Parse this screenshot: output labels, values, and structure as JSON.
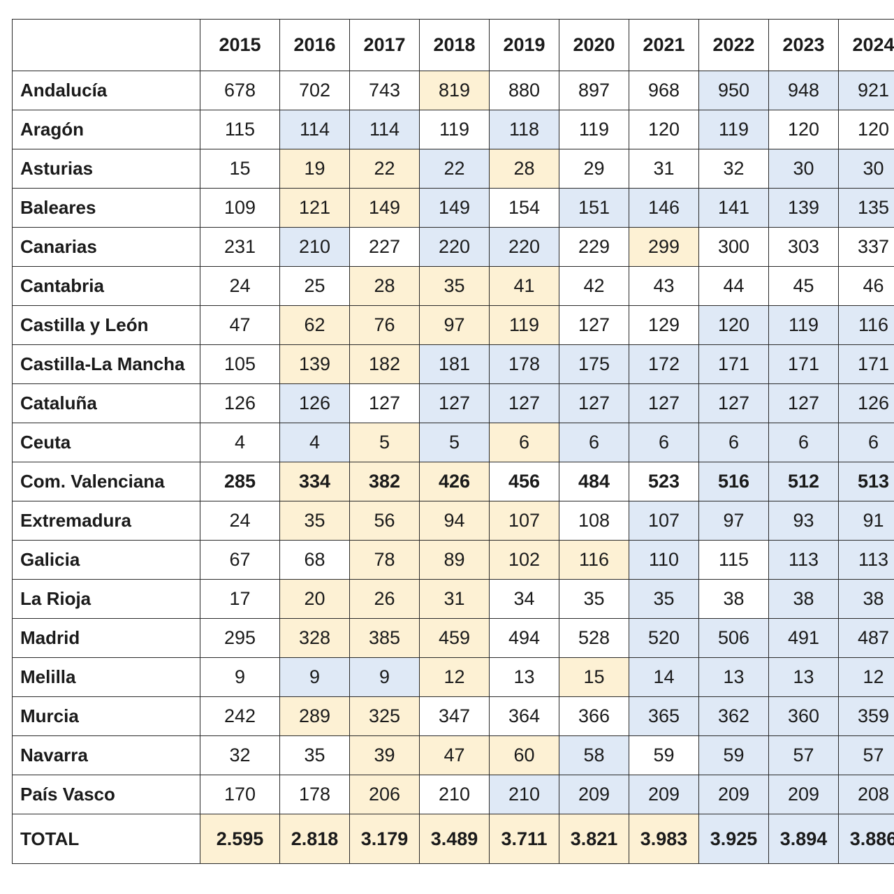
{
  "table": {
    "years": [
      "2015",
      "2016",
      "2017",
      "2018",
      "2019",
      "2020",
      "2021",
      "2022",
      "2023",
      "2024"
    ],
    "shading_colors": {
      "yellow": "#fdf1d4",
      "blue": "#dfe9f6",
      "white": "#ffffff"
    },
    "rows": [
      {
        "region": "Andalucía",
        "values": [
          "678",
          "702",
          "743",
          "819",
          "880",
          "897",
          "968",
          "950",
          "948",
          "921"
        ],
        "shading": [
          "w",
          "w",
          "w",
          "y",
          "w",
          "w",
          "w",
          "b",
          "b",
          "b"
        ],
        "bold": false
      },
      {
        "region": "Aragón",
        "values": [
          "115",
          "114",
          "114",
          "119",
          "118",
          "119",
          "120",
          "119",
          "120",
          "120"
        ],
        "shading": [
          "w",
          "b",
          "b",
          "w",
          "b",
          "w",
          "w",
          "b",
          "w",
          "w"
        ],
        "bold": false
      },
      {
        "region": "Asturias",
        "values": [
          "15",
          "19",
          "22",
          "22",
          "28",
          "29",
          "31",
          "32",
          "30",
          "30"
        ],
        "shading": [
          "w",
          "y",
          "y",
          "b",
          "y",
          "w",
          "w",
          "w",
          "b",
          "b"
        ],
        "bold": false
      },
      {
        "region": "Baleares",
        "values": [
          "109",
          "121",
          "149",
          "149",
          "154",
          "151",
          "146",
          "141",
          "139",
          "135"
        ],
        "shading": [
          "w",
          "y",
          "y",
          "b",
          "w",
          "b",
          "b",
          "b",
          "b",
          "b"
        ],
        "bold": false
      },
      {
        "region": "Canarias",
        "values": [
          "231",
          "210",
          "227",
          "220",
          "220",
          "229",
          "299",
          "300",
          "303",
          "337"
        ],
        "shading": [
          "w",
          "b",
          "w",
          "b",
          "b",
          "w",
          "y",
          "w",
          "w",
          "w"
        ],
        "bold": false
      },
      {
        "region": "Cantabria",
        "values": [
          "24",
          "25",
          "28",
          "35",
          "41",
          "42",
          "43",
          "44",
          "45",
          "46"
        ],
        "shading": [
          "w",
          "w",
          "y",
          "y",
          "y",
          "w",
          "w",
          "w",
          "w",
          "w"
        ],
        "bold": false
      },
      {
        "region": "Castilla y León",
        "values": [
          "47",
          "62",
          "76",
          "97",
          "119",
          "127",
          "129",
          "120",
          "119",
          "116"
        ],
        "shading": [
          "w",
          "y",
          "y",
          "y",
          "y",
          "w",
          "w",
          "b",
          "b",
          "b"
        ],
        "bold": false
      },
      {
        "region": "Castilla-La Mancha",
        "values": [
          "105",
          "139",
          "182",
          "181",
          "178",
          "175",
          "172",
          "171",
          "171",
          "171"
        ],
        "shading": [
          "w",
          "y",
          "y",
          "b",
          "b",
          "b",
          "b",
          "b",
          "b",
          "b"
        ],
        "bold": false
      },
      {
        "region": "Cataluña",
        "values": [
          "126",
          "126",
          "127",
          "127",
          "127",
          "127",
          "127",
          "127",
          "127",
          "126"
        ],
        "shading": [
          "w",
          "b",
          "w",
          "b",
          "b",
          "b",
          "b",
          "b",
          "b",
          "b"
        ],
        "bold": false
      },
      {
        "region": "Ceuta",
        "values": [
          "4",
          "4",
          "5",
          "5",
          "6",
          "6",
          "6",
          "6",
          "6",
          "6"
        ],
        "shading": [
          "w",
          "b",
          "y",
          "b",
          "y",
          "b",
          "b",
          "b",
          "b",
          "b"
        ],
        "bold": false
      },
      {
        "region": "Com.  Valenciana",
        "values": [
          "285",
          "334",
          "382",
          "426",
          "456",
          "484",
          "523",
          "516",
          "512",
          "513"
        ],
        "shading": [
          "w",
          "y",
          "y",
          "y",
          "w",
          "w",
          "w",
          "b",
          "b",
          "b"
        ],
        "bold": true
      },
      {
        "region": "Extremadura",
        "values": [
          "24",
          "35",
          "56",
          "94",
          "107",
          "108",
          "107",
          "97",
          "93",
          "91"
        ],
        "shading": [
          "w",
          "y",
          "y",
          "y",
          "y",
          "w",
          "b",
          "b",
          "b",
          "b"
        ],
        "bold": false
      },
      {
        "region": "Galicia",
        "values": [
          "67",
          "68",
          "78",
          "89",
          "102",
          "116",
          "110",
          "115",
          "113",
          "113"
        ],
        "shading": [
          "w",
          "w",
          "y",
          "y",
          "y",
          "y",
          "b",
          "w",
          "b",
          "b"
        ],
        "bold": false
      },
      {
        "region": "La Rioja",
        "values": [
          "17",
          "20",
          "26",
          "31",
          "34",
          "35",
          "35",
          "38",
          "38",
          "38"
        ],
        "shading": [
          "w",
          "y",
          "y",
          "y",
          "w",
          "w",
          "b",
          "w",
          "b",
          "b"
        ],
        "bold": false
      },
      {
        "region": "Madrid",
        "values": [
          "295",
          "328",
          "385",
          "459",
          "494",
          "528",
          "520",
          "506",
          "491",
          "487"
        ],
        "shading": [
          "w",
          "y",
          "y",
          "y",
          "w",
          "w",
          "b",
          "b",
          "b",
          "b"
        ],
        "bold": false
      },
      {
        "region": "Melilla",
        "values": [
          "9",
          "9",
          "9",
          "12",
          "13",
          "15",
          "14",
          "13",
          "13",
          "12"
        ],
        "shading": [
          "w",
          "b",
          "b",
          "y",
          "w",
          "y",
          "b",
          "b",
          "b",
          "b"
        ],
        "bold": false
      },
      {
        "region": "Murcia",
        "values": [
          "242",
          "289",
          "325",
          "347",
          "364",
          "366",
          "365",
          "362",
          "360",
          "359"
        ],
        "shading": [
          "w",
          "y",
          "y",
          "w",
          "w",
          "w",
          "b",
          "b",
          "b",
          "b"
        ],
        "bold": false
      },
      {
        "region": "Navarra",
        "values": [
          "32",
          "35",
          "39",
          "47",
          "60",
          "58",
          "59",
          "59",
          "57",
          "57"
        ],
        "shading": [
          "w",
          "w",
          "y",
          "y",
          "y",
          "b",
          "w",
          "b",
          "b",
          "b"
        ],
        "bold": false
      },
      {
        "region": "País Vasco",
        "values": [
          "170",
          "178",
          "206",
          "210",
          "210",
          "209",
          "209",
          "209",
          "209",
          "208"
        ],
        "shading": [
          "w",
          "w",
          "y",
          "w",
          "b",
          "b",
          "b",
          "b",
          "b",
          "b"
        ],
        "bold": false
      }
    ],
    "total": {
      "label": "TOTAL",
      "values": [
        "2.595",
        "2.818",
        "3.179",
        "3.489",
        "3.711",
        "3.821",
        "3.983",
        "3.925",
        "3.894",
        "3.886"
      ],
      "shading": [
        "y",
        "y",
        "y",
        "y",
        "y",
        "y",
        "y",
        "b",
        "b",
        "b"
      ]
    }
  }
}
